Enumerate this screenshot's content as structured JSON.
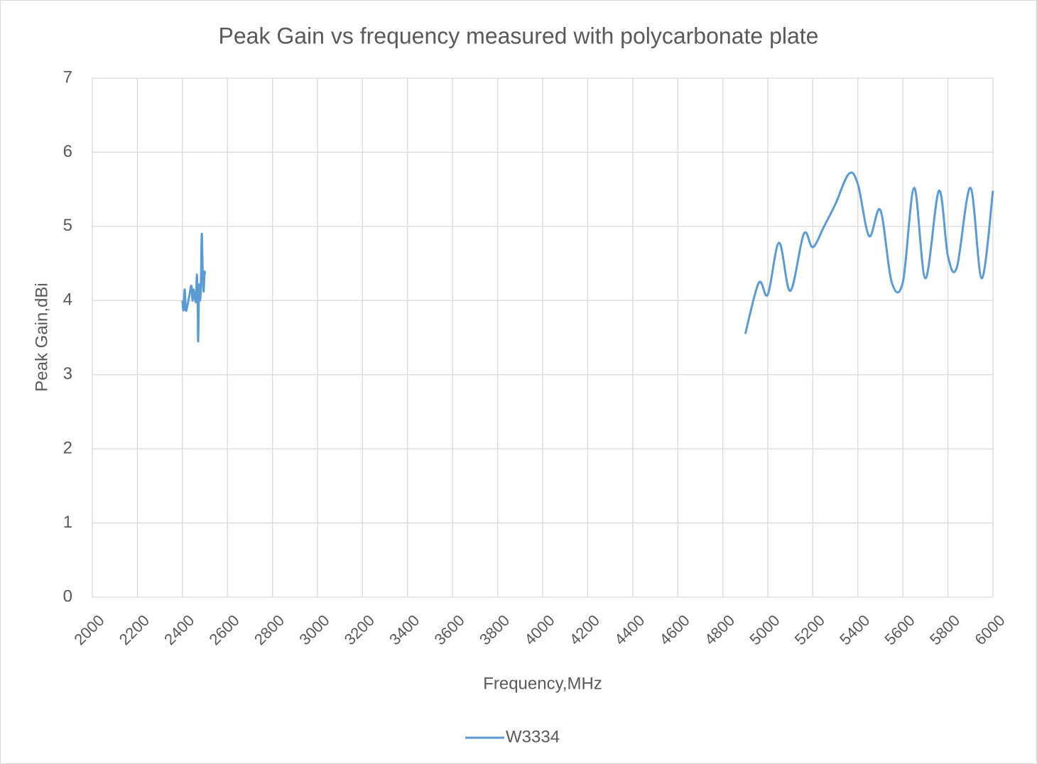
{
  "chart_data": {
    "type": "line",
    "title": "Peak Gain vs frequency measured with polycarbonate plate",
    "x_label": "Frequency,MHz",
    "y_label": "Peak Gain,dBi",
    "xlim": [
      2000,
      6000
    ],
    "xticks": [
      2000,
      2200,
      2400,
      2600,
      2800,
      3000,
      3200,
      3400,
      3600,
      3800,
      4000,
      4200,
      4400,
      4600,
      4800,
      5000,
      5200,
      5400,
      5600,
      5800,
      6000
    ],
    "ylim": [
      0,
      7
    ],
    "yticks": [
      0,
      1,
      2,
      3,
      4,
      5,
      6,
      7
    ],
    "grid": true,
    "legend": "bottom",
    "x": [
      2400,
      2405,
      2410,
      2415,
      2420,
      2430,
      2440,
      2445,
      2450,
      2460,
      2464,
      2468,
      2470,
      2474,
      2478,
      2482,
      2486,
      2490,
      2494,
      2498,
      2500,
      null,
      4900,
      4960,
      5000,
      5050,
      5100,
      5160,
      5200,
      5250,
      5300,
      5360,
      5400,
      5450,
      5500,
      5550,
      5600,
      5650,
      5700,
      5760,
      5800,
      5840,
      5900,
      5950,
      6000
    ],
    "series": [
      {
        "name": "W3334",
        "color": "#5b9bd5",
        "values": [
          4.0,
          3.87,
          4.15,
          3.88,
          3.9,
          4.05,
          4.2,
          4.0,
          4.15,
          3.98,
          4.35,
          4.0,
          3.45,
          4.2,
          4.0,
          4.2,
          4.9,
          4.4,
          4.12,
          4.38,
          4.35,
          null,
          3.55,
          4.24,
          4.08,
          4.78,
          4.13,
          4.9,
          4.72,
          5.0,
          5.3,
          5.71,
          5.57,
          4.87,
          5.22,
          4.25,
          4.25,
          5.52,
          4.3,
          5.48,
          4.6,
          4.45,
          5.52,
          4.3,
          5.48
        ]
      }
    ]
  }
}
